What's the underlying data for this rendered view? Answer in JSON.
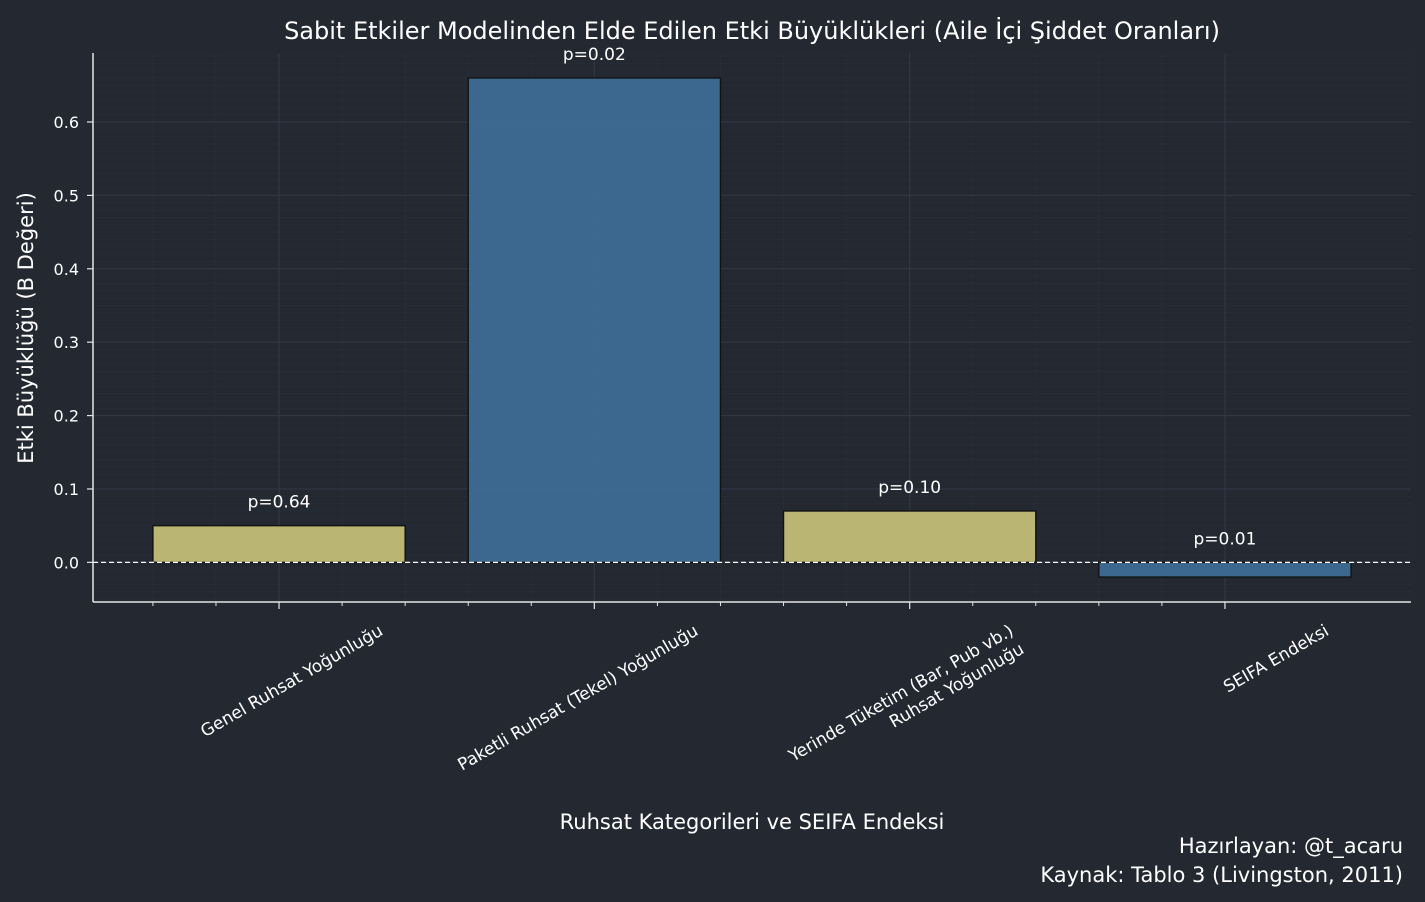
{
  "chart_data": {
    "type": "bar",
    "title": "Sabit Etkiler Modelinden Elde Edilen Etki Büyüklükleri (Aile İçi Şiddet Oranları)",
    "xlabel": "Ruhsat Kategorileri ve SEIFA Endeksi",
    "ylabel": "Etki Büyüklüğü (B Değeri)",
    "categories": [
      [
        "Genel Ruhsat Yoğunluğu"
      ],
      [
        "Paketli Ruhsat (Tekel) Yoğunluğu"
      ],
      [
        "Yerinde Tüketim (Bar, Pub vb.)",
        "Ruhsat Yoğunluğu"
      ],
      [
        "SEIFA Endeksi"
      ]
    ],
    "values": [
      0.05,
      0.66,
      0.07,
      -0.02
    ],
    "bar_labels": [
      "p=0.64",
      "p=0.02",
      "p=0.10",
      "p=0.01"
    ],
    "bar_colors": [
      "#c8c27a",
      "#3f6e98",
      "#c8c27a",
      "#3f6e98"
    ],
    "ylim": [
      -0.054,
      0.694
    ],
    "yticks": [
      0.0,
      0.1,
      0.2,
      0.3,
      0.4,
      0.5,
      0.6
    ],
    "ytick_labels": [
      "0.0",
      "0.1",
      "0.2",
      "0.3",
      "0.4",
      "0.5",
      "0.6"
    ],
    "grid": true,
    "zero_line": true
  },
  "credits": {
    "author": "Hazırlayan: @t_acaru",
    "source": "Kaynak: Tablo 3 (Livingston, 2011)"
  },
  "colors": {
    "background": "#232831",
    "axis": "#e6e6e6",
    "grid": "#323945",
    "text": "#ffffff"
  }
}
